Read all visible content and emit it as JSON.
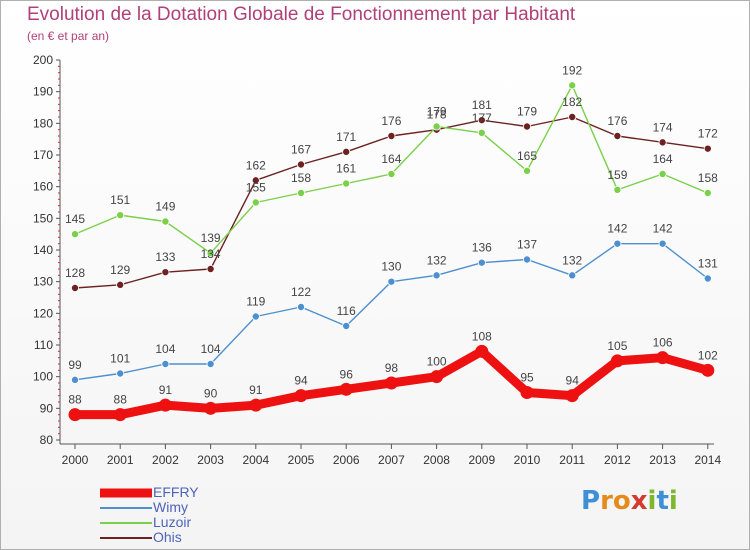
{
  "title": "Evolution de la Dotation Globale de Fonctionnement par Habitant",
  "subtitle": "(en € et par an)",
  "brand": "Proxiti",
  "colors": {
    "title": "#b0407a",
    "axis": "#555555",
    "legend_text": "#4f63b8"
  },
  "chart_data": {
    "type": "line",
    "title": "Evolution de la Dotation Globale de Fonctionnement par Habitant",
    "subtitle": "(en € et par an)",
    "xlabel": "",
    "ylabel": "",
    "x": [
      "2000",
      "2001",
      "2002",
      "2003",
      "2004",
      "2005",
      "2006",
      "2007",
      "2008",
      "2009",
      "2010",
      "2011",
      "2012",
      "2013",
      "2014"
    ],
    "ylim": [
      80,
      200
    ],
    "yticks": [
      80,
      90,
      100,
      110,
      120,
      130,
      140,
      150,
      160,
      170,
      180,
      190,
      200
    ],
    "grid": false,
    "legend_position": "bottom-left",
    "series": [
      {
        "name": "EFFRY",
        "color": "#ee1111",
        "values": [
          88,
          88,
          91,
          90,
          91,
          94,
          96,
          98,
          100,
          108,
          95,
          94,
          105,
          106,
          102
        ]
      },
      {
        "name": "Wimy",
        "color": "#4d8fcf",
        "values": [
          99,
          101,
          104,
          104,
          119,
          122,
          116,
          130,
          132,
          136,
          137,
          132,
          142,
          142,
          131
        ]
      },
      {
        "name": "Luzoir",
        "color": "#7bd04a",
        "values": [
          145,
          151,
          149,
          139,
          155,
          158,
          161,
          164,
          179,
          177,
          165,
          192,
          159,
          164,
          158
        ]
      },
      {
        "name": "Ohis",
        "color": "#6e2121",
        "values": [
          128,
          129,
          133,
          134,
          162,
          167,
          171,
          176,
          178,
          181,
          179,
          182,
          176,
          174,
          172
        ]
      }
    ]
  }
}
